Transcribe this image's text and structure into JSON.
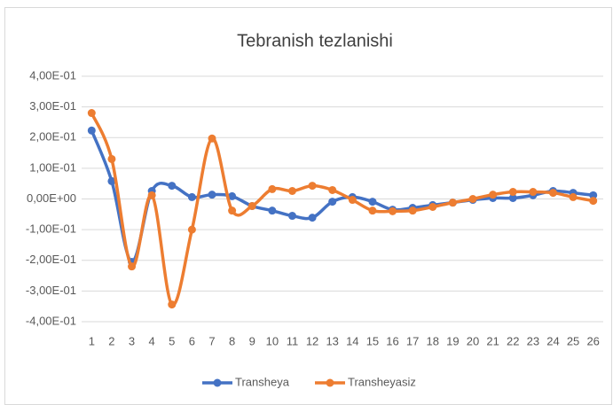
{
  "chart_data": {
    "type": "line",
    "title": "Tebranish tezlanishi",
    "categories": [
      "1",
      "2",
      "3",
      "4",
      "5",
      "6",
      "7",
      "8",
      "9",
      "10",
      "11",
      "12",
      "13",
      "14",
      "15",
      "16",
      "17",
      "18",
      "19",
      "20",
      "21",
      "22",
      "23",
      "24",
      "25",
      "26"
    ],
    "series": [
      {
        "name": "Transheya",
        "color": "#4472c4",
        "values": [
          0.223,
          0.058,
          -0.205,
          0.026,
          0.043,
          0.006,
          0.014,
          0.009,
          -0.023,
          -0.038,
          -0.055,
          -0.061,
          -0.009,
          0.006,
          -0.009,
          -0.035,
          -0.029,
          -0.02,
          -0.012,
          -0.003,
          0.003,
          0.003,
          0.012,
          0.026,
          0.02,
          0.012
        ]
      },
      {
        "name": "Transheyasiz",
        "color": "#ed7d31",
        "values": [
          0.28,
          0.13,
          -0.22,
          0.012,
          -0.344,
          -0.1,
          0.197,
          -0.038,
          -0.023,
          0.032,
          0.026,
          0.043,
          0.029,
          -0.003,
          -0.038,
          -0.04,
          -0.038,
          -0.026,
          -0.012,
          0,
          0.014,
          0.023,
          0.023,
          0.02,
          0.006,
          -0.006
        ]
      }
    ],
    "ylim": [
      -0.4,
      0.4
    ],
    "yticks": [
      {
        "value": -0.4,
        "label": "-4,00E-01"
      },
      {
        "value": -0.3,
        "label": "-3,00E-01"
      },
      {
        "value": -0.2,
        "label": "-2,00E-01"
      },
      {
        "value": -0.1,
        "label": "-1,00E-01"
      },
      {
        "value": 0,
        "label": "0,00E+00"
      },
      {
        "value": 0.1,
        "label": "1,00E-01"
      },
      {
        "value": 0.2,
        "label": "2,00E-01"
      },
      {
        "value": 0.3,
        "label": "3,00E-01"
      },
      {
        "value": 0.4,
        "label": "4,00E-01"
      }
    ],
    "grid": true,
    "smooth": true,
    "legend": "bottom"
  }
}
